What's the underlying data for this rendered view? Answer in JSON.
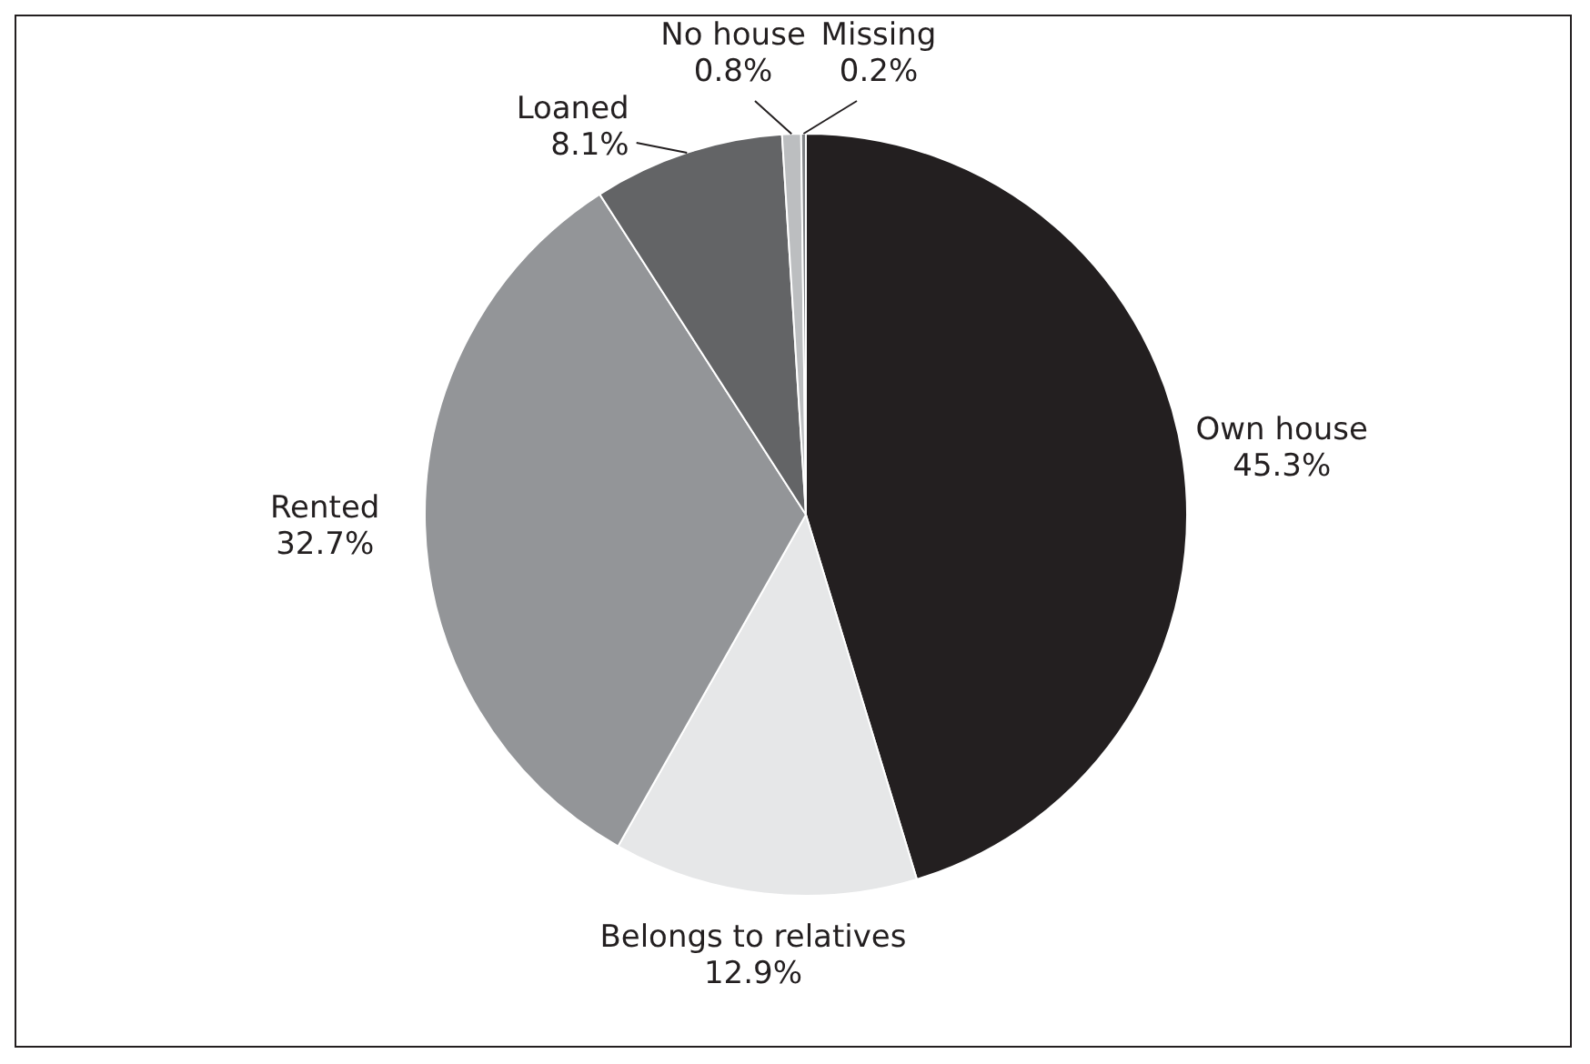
{
  "chart_data": {
    "type": "pie",
    "categories": [
      "Own house",
      "Belongs to relatives",
      "Rented",
      "Loaned",
      "No house",
      "Missing"
    ],
    "values": [
      45.3,
      12.9,
      32.7,
      8.1,
      0.8,
      0.2
    ],
    "value_labels": [
      "45.3%",
      "12.9%",
      "32.7%",
      "8.1%",
      "0.8%",
      "0.2%"
    ],
    "colors": [
      "#231f20",
      "#e6e7e8",
      "#939598",
      "#636466",
      "#bcbec0",
      "#808285"
    ],
    "legend": false
  }
}
